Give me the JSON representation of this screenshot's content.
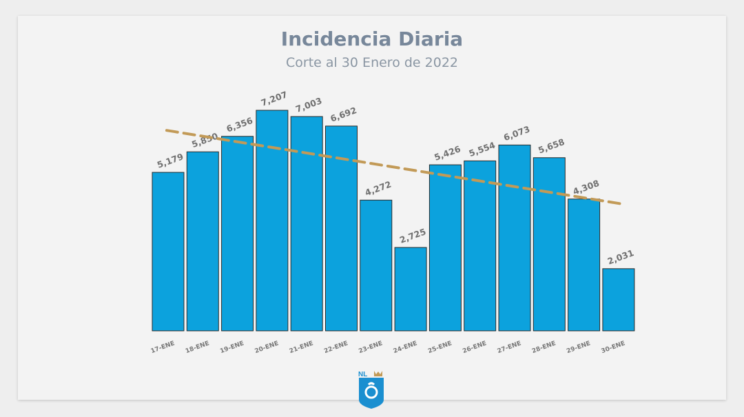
{
  "header": {
    "title": "Incidencia Diaria",
    "subtitle": "Corte al 30 Enero de 2022"
  },
  "logo": {
    "text": "NL"
  },
  "colors": {
    "bar": "#0ca2dd",
    "trend": "#c29a57",
    "logo": "#1b8fd0"
  },
  "chart_data": {
    "type": "bar",
    "title": "Incidencia Diaria",
    "subtitle": "Corte al 30 Enero de 2022",
    "categories": [
      "17-ENE",
      "18-ENE",
      "19-ENE",
      "20-ENE",
      "21-ENE",
      "22-ENE",
      "23-ENE",
      "24-ENE",
      "25-ENE",
      "26-ENE",
      "27-ENE",
      "28-ENE",
      "29-ENE",
      "30-ENE"
    ],
    "values": [
      5179,
      5850,
      6356,
      7207,
      7003,
      6692,
      4272,
      2725,
      5426,
      5554,
      6073,
      5658,
      4308,
      2031
    ],
    "data_labels": [
      "5,179",
      "5,850",
      "6,356",
      "7,207",
      "7,003",
      "6,692",
      "4,272",
      "2,725",
      "5,426",
      "5,554",
      "6,073",
      "5,658",
      "4,308",
      "2,031"
    ],
    "trendline": {
      "style": "dashed",
      "start": 6550,
      "end": 4150
    },
    "xlabel": "",
    "ylabel": "",
    "ylim": [
      0,
      7500
    ],
    "grid": false,
    "legend": "none"
  }
}
